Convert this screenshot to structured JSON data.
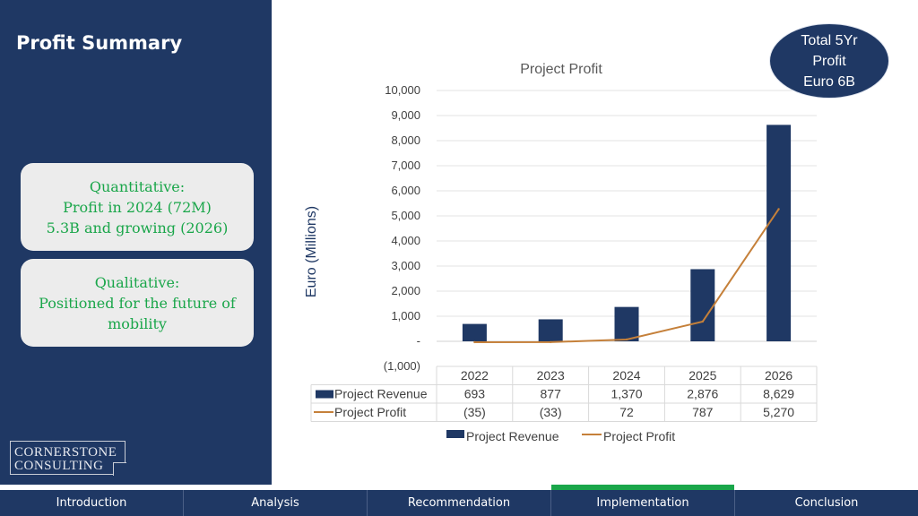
{
  "page": {
    "title": "Profit Summary",
    "cards": {
      "quantitative": [
        "Quantitative:",
        "Profit in 2024 (72M)",
        "5.3B and growing (2026)"
      ],
      "qualitative": [
        "Qualitative:",
        "Positioned for the future of",
        "mobility"
      ]
    },
    "logo": [
      "CORNERSTONE",
      "CONSULTING"
    ],
    "bubble": [
      "Total 5Yr",
      "Profit",
      "Euro 6B"
    ]
  },
  "colors": {
    "navy": "#1f3864",
    "revenue_bar": "#1f3864",
    "profit_line": "#c5803a",
    "accent_green": "#1aa64a"
  },
  "chart_data": {
    "type": "bar",
    "title": "Project Profit",
    "ylabel": "Euro (Millions)",
    "ylim": [
      -1000,
      10000
    ],
    "y_ticks": [
      10000,
      9000,
      8000,
      7000,
      6000,
      5000,
      4000,
      3000,
      2000,
      1000,
      0,
      -1000
    ],
    "y_tick_labels": [
      "10,000",
      "9,000",
      "8,000",
      "7,000",
      "6,000",
      "5,000",
      "4,000",
      "3,000",
      "2,000",
      "1,000",
      "-",
      "(1,000)"
    ],
    "categories": [
      "2022",
      "2023",
      "2024",
      "2025",
      "2026"
    ],
    "series": [
      {
        "name": "Project Revenue",
        "kind": "bar",
        "values": [
          693,
          877,
          1370,
          2876,
          8629
        ],
        "labels": [
          "693",
          "877",
          "1,370",
          "2,876",
          "8,629"
        ]
      },
      {
        "name": "Project Profit",
        "kind": "line",
        "values": [
          -35,
          -33,
          72,
          787,
          5270
        ],
        "labels": [
          "(35)",
          "(33)",
          "72",
          "787",
          "5,270"
        ]
      }
    ],
    "grid": true,
    "legend": "bottom",
    "data_table": true
  },
  "nav": {
    "tabs": [
      "Introduction",
      "Analysis",
      "Recommendation",
      "Implementation",
      "Conclusion"
    ],
    "active_index": 3
  }
}
